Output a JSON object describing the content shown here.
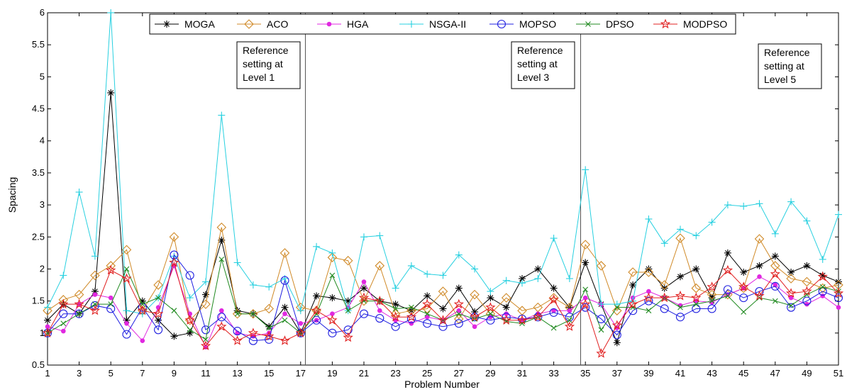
{
  "chart_data": {
    "type": "line",
    "xlabel": "Problem Number",
    "ylabel": "Spacing",
    "xlim": [
      1,
      51
    ],
    "ylim": [
      0.5,
      6
    ],
    "xticks": [
      1,
      3,
      5,
      7,
      9,
      11,
      13,
      15,
      17,
      19,
      21,
      23,
      25,
      27,
      29,
      31,
      33,
      35,
      37,
      39,
      41,
      43,
      45,
      47,
      49,
      51
    ],
    "yticks": [
      "0.5",
      "1",
      "1.5",
      "2",
      "2.5",
      "3",
      "3.5",
      "4",
      "4.5",
      "5",
      "5.5",
      "6"
    ],
    "grid": false,
    "legend_position": "top",
    "annotations": [
      {
        "lines": [
          "Reference",
          "setting at",
          "Level 1"
        ],
        "x_line": 17.3
      },
      {
        "lines": [
          "Reference",
          "setting at",
          "Level 3"
        ],
        "x_line": 34.7
      },
      {
        "lines": [
          "Reference",
          "setting at",
          "Level 5"
        ],
        "x_line": null
      }
    ],
    "x": [
      1,
      2,
      3,
      4,
      5,
      6,
      7,
      8,
      9,
      10,
      11,
      12,
      13,
      14,
      15,
      16,
      17,
      18,
      19,
      20,
      21,
      22,
      23,
      24,
      25,
      26,
      27,
      28,
      29,
      30,
      31,
      32,
      33,
      34,
      35,
      36,
      37,
      38,
      39,
      40,
      41,
      42,
      43,
      44,
      45,
      46,
      47,
      48,
      49,
      50,
      51
    ],
    "series": [
      {
        "name": "MOGA",
        "color": "#000000",
        "marker": "asterisk",
        "values": [
          1.2,
          1.45,
          1.3,
          1.65,
          4.75,
          1.2,
          1.5,
          1.2,
          0.95,
          1.0,
          1.6,
          2.45,
          1.35,
          1.3,
          1.1,
          1.4,
          1.0,
          1.58,
          1.55,
          1.5,
          1.7,
          1.5,
          1.45,
          1.35,
          1.58,
          1.38,
          1.7,
          1.33,
          1.55,
          1.4,
          1.85,
          2.0,
          1.7,
          1.4,
          2.1,
          1.45,
          0.85,
          1.75,
          2.0,
          1.7,
          1.88,
          2.0,
          1.55,
          2.25,
          1.95,
          2.05,
          2.2,
          1.95,
          2.05,
          1.9,
          1.8
        ]
      },
      {
        "name": "ACO",
        "color": "#d08a28",
        "marker": "diamond",
        "values": [
          1.35,
          1.52,
          1.6,
          1.9,
          2.05,
          2.3,
          1.35,
          1.75,
          2.5,
          1.2,
          1.45,
          2.65,
          1.3,
          1.3,
          1.38,
          2.25,
          1.4,
          1.35,
          2.18,
          2.13,
          1.5,
          2.05,
          1.3,
          1.35,
          1.38,
          1.65,
          1.22,
          1.6,
          1.3,
          1.55,
          1.35,
          1.4,
          1.55,
          1.4,
          2.38,
          2.05,
          1.35,
          1.95,
          1.95,
          1.75,
          2.48,
          1.7,
          1.6,
          1.6,
          1.7,
          2.47,
          2.05,
          1.85,
          1.8,
          1.7,
          1.75
        ]
      },
      {
        "name": "HGA",
        "color": "#e028e0",
        "marker": "dot",
        "values": [
          1.1,
          1.03,
          1.45,
          1.6,
          1.55,
          1.15,
          0.88,
          1.4,
          2.05,
          1.3,
          0.78,
          1.35,
          1.0,
          0.95,
          1.0,
          1.3,
          1.15,
          1.2,
          1.3,
          1.4,
          1.8,
          1.35,
          1.2,
          1.15,
          1.25,
          1.2,
          1.35,
          1.1,
          1.25,
          1.3,
          1.2,
          1.3,
          1.35,
          1.35,
          1.55,
          1.45,
          1.08,
          1.55,
          1.65,
          1.55,
          1.43,
          1.5,
          1.48,
          1.6,
          1.7,
          1.88,
          1.75,
          1.55,
          1.45,
          1.58,
          1.4
        ]
      },
      {
        "name": "NSGA-II",
        "color": "#28d0e0",
        "marker": "plus",
        "values": [
          1.4,
          1.9,
          3.2,
          2.2,
          6.0,
          1.35,
          1.3,
          1.55,
          2.2,
          1.55,
          1.8,
          4.4,
          2.1,
          1.75,
          1.72,
          1.85,
          1.35,
          2.35,
          2.25,
          1.35,
          2.5,
          2.52,
          1.7,
          2.05,
          1.92,
          1.9,
          2.22,
          2.0,
          1.65,
          1.82,
          1.78,
          1.85,
          2.48,
          1.85,
          3.55,
          1.45,
          1.45,
          1.5,
          2.78,
          2.4,
          2.62,
          2.52,
          2.73,
          3.0,
          2.98,
          3.02,
          2.55,
          3.05,
          2.75,
          2.15,
          2.85
        ]
      },
      {
        "name": "MOPSO",
        "color": "#2020e0",
        "marker": "circle",
        "values": [
          1.0,
          1.3,
          1.3,
          1.43,
          1.38,
          0.98,
          1.4,
          1.05,
          2.22,
          1.9,
          1.05,
          1.25,
          1.03,
          0.88,
          0.9,
          1.82,
          1.0,
          1.2,
          1.0,
          1.05,
          1.3,
          1.23,
          1.1,
          1.22,
          1.15,
          1.1,
          1.15,
          1.25,
          1.2,
          1.25,
          1.22,
          1.25,
          1.32,
          1.25,
          1.4,
          1.22,
          0.97,
          1.35,
          1.5,
          1.38,
          1.25,
          1.38,
          1.38,
          1.68,
          1.55,
          1.65,
          1.73,
          1.4,
          1.5,
          1.65,
          1.55
        ]
      },
      {
        "name": "DPSO",
        "color": "#208a20",
        "marker": "cross",
        "values": [
          1.0,
          1.15,
          1.3,
          1.45,
          1.45,
          2.0,
          1.45,
          1.55,
          1.35,
          1.05,
          0.9,
          2.15,
          1.3,
          1.3,
          1.08,
          1.2,
          1.0,
          1.3,
          1.9,
          1.35,
          1.5,
          1.5,
          1.38,
          1.4,
          1.3,
          1.2,
          1.3,
          1.22,
          1.3,
          1.18,
          1.15,
          1.25,
          1.08,
          1.2,
          1.68,
          1.05,
          1.4,
          1.4,
          1.35,
          1.55,
          1.4,
          1.45,
          1.5,
          1.58,
          1.33,
          1.55,
          1.5,
          1.43,
          1.6,
          1.72,
          1.65
        ]
      },
      {
        "name": "MODPSO",
        "color": "#e02020",
        "marker": "star",
        "values": [
          1.0,
          1.45,
          1.45,
          1.35,
          1.98,
          1.85,
          1.35,
          1.3,
          2.1,
          1.2,
          0.8,
          1.1,
          0.88,
          1.0,
          0.95,
          0.88,
          1.0,
          1.35,
          1.2,
          0.93,
          1.55,
          1.5,
          1.25,
          1.25,
          1.45,
          1.2,
          1.45,
          1.25,
          1.4,
          1.2,
          1.2,
          1.25,
          1.52,
          1.1,
          1.45,
          0.68,
          1.12,
          1.45,
          1.55,
          1.55,
          1.58,
          1.55,
          1.72,
          1.98,
          1.72,
          1.58,
          1.92,
          1.62,
          1.65,
          1.88,
          1.62
        ]
      }
    ]
  }
}
